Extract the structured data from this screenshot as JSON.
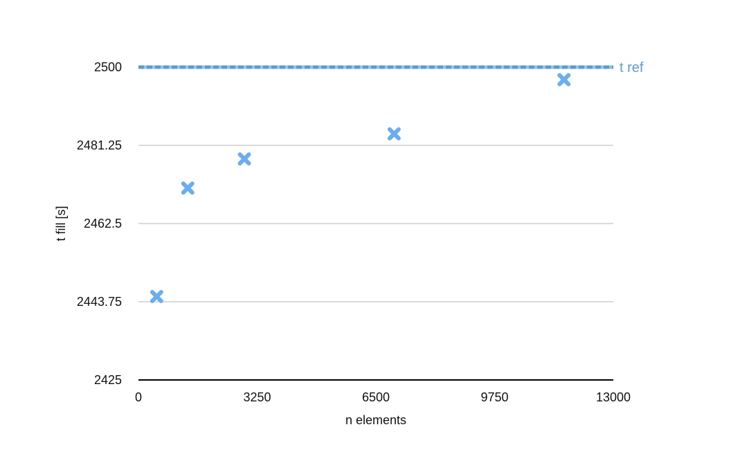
{
  "chart_data": {
    "type": "scatter",
    "title": "",
    "xlabel": "n elements",
    "ylabel": "t fill [s]",
    "xlim": [
      0,
      13000
    ],
    "ylim": [
      2425,
      2500
    ],
    "x_ticks": [
      "0",
      "3250",
      "6500",
      "9750",
      "13000"
    ],
    "y_ticks": [
      "2425",
      "2443.75",
      "2462.5",
      "2481.25",
      "2500"
    ],
    "x_tick_values": [
      0,
      3250,
      6500,
      9750,
      13000
    ],
    "y_tick_values": [
      2425,
      2443.75,
      2462.5,
      2481.25,
      2500
    ],
    "grid": true,
    "series": [
      {
        "marker": "x",
        "color": "#6aaef2",
        "points": [
          {
            "x": 500,
            "y": 2445
          },
          {
            "x": 1350,
            "y": 2471
          },
          {
            "x": 2900,
            "y": 2478
          },
          {
            "x": 7000,
            "y": 2484
          },
          {
            "x": 11650,
            "y": 2497
          }
        ]
      }
    ],
    "reference_line": {
      "label": "t ref",
      "y": 2500,
      "color": "#5b9bd5",
      "style": "dashed"
    }
  }
}
